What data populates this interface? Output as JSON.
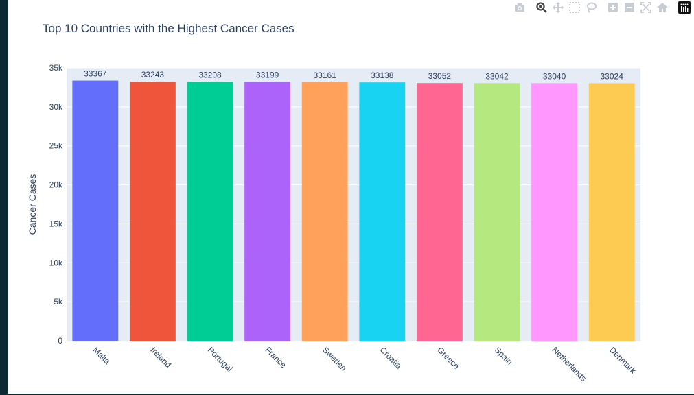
{
  "chart_data": {
    "type": "bar",
    "title": "Top 10 Countries with the Highest Cancer Cases",
    "xlabel": "",
    "ylabel": "Cancer Cases",
    "categories": [
      "Malta",
      "Ireland",
      "Portugal",
      "France",
      "Sweden",
      "Croatia",
      "Greece",
      "Spain",
      "Netherlands",
      "Denmark"
    ],
    "values": [
      33367,
      33243,
      33208,
      33199,
      33161,
      33138,
      33052,
      33042,
      33040,
      33024
    ],
    "value_labels": [
      "33367",
      "33243",
      "33208",
      "33199",
      "33161",
      "33138",
      "33052",
      "33042",
      "33040",
      "33024"
    ],
    "colors": [
      "#636efa",
      "#ef553b",
      "#00cc96",
      "#ab63fa",
      "#ffa15a",
      "#19d3f3",
      "#ff6692",
      "#b6e880",
      "#ff97ff",
      "#fecb52"
    ],
    "ylim": [
      0,
      35000
    ],
    "yticks": [
      0,
      5000,
      10000,
      15000,
      20000,
      25000,
      30000,
      35000
    ],
    "ytick_labels": [
      "0",
      "5k",
      "10k",
      "15k",
      "20k",
      "25k",
      "30k",
      "35k"
    ],
    "grid": true,
    "legend": "none"
  },
  "modebar": {
    "icons": [
      "camera-icon",
      "zoom-icon",
      "pan-icon",
      "box-select-icon",
      "lasso-select-icon",
      "zoom-in-icon",
      "zoom-out-icon",
      "autoscale-icon",
      "reset-axes-icon",
      "plotly-logo-icon"
    ]
  },
  "colors": {
    "plot_background": "#e5ecf6",
    "grid": "#ffffff",
    "text": "#2a3f5f",
    "frame": "#0b2a33"
  }
}
